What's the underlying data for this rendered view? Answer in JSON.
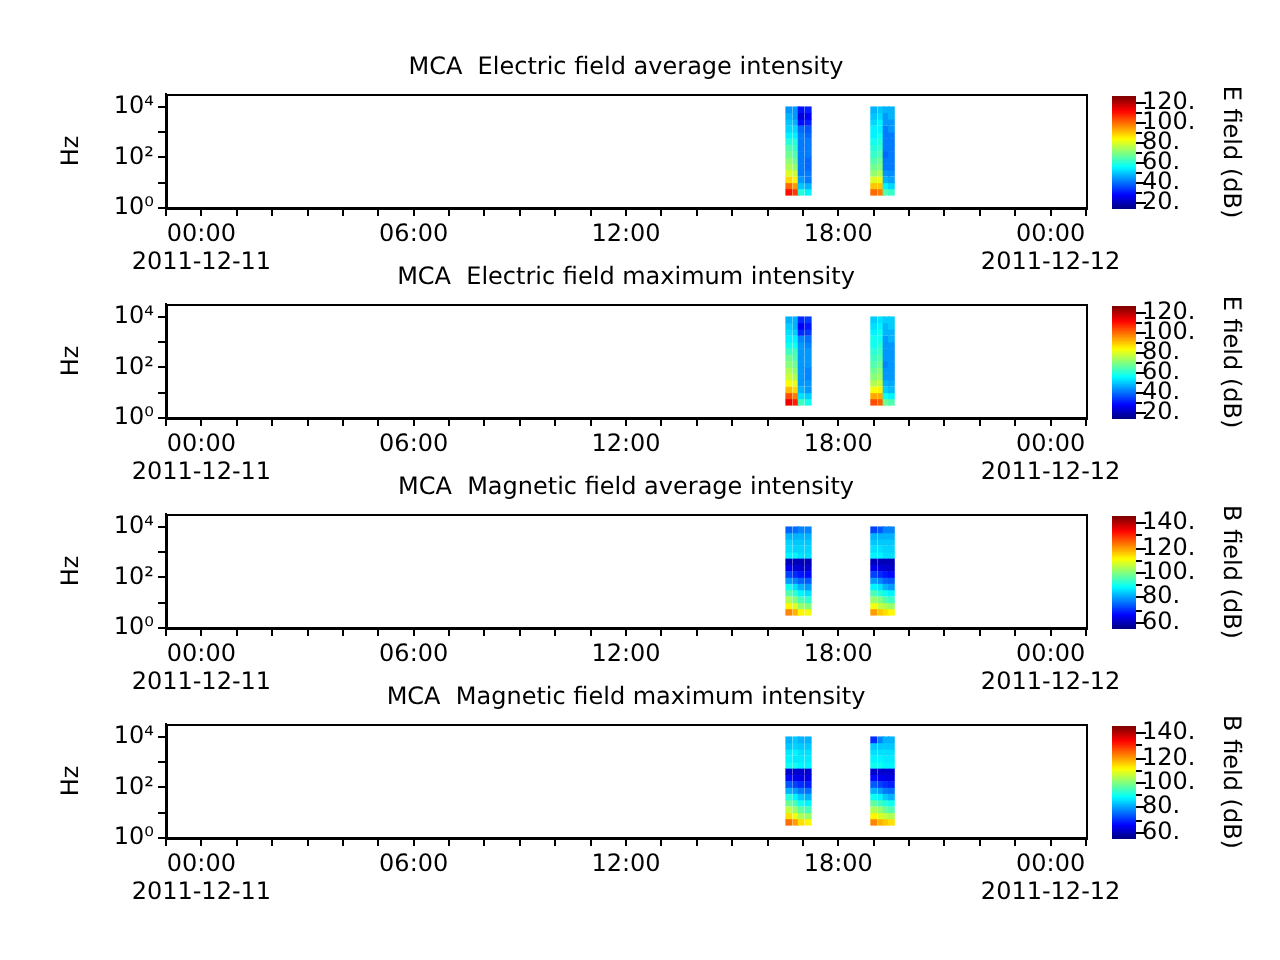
{
  "chart_data": [
    {
      "type": "scatter",
      "title": "MCA  Electric field average intensity",
      "ylabel": "Hz",
      "clabel": "E field (dB)",
      "log": "y",
      "marker": "square",
      "xlim": [
        -1,
        25
      ],
      "xticks": [
        {
          "value": -1,
          "label": null
        },
        {
          "value": 0,
          "label": "00:00\n2011-12-11"
        },
        {
          "value": 1,
          "label": null
        },
        {
          "value": 2,
          "label": null
        },
        {
          "value": 3,
          "label": null
        },
        {
          "value": 4,
          "label": null
        },
        {
          "value": 5,
          "label": null
        },
        {
          "value": 6,
          "label": "06:00"
        },
        {
          "value": 7,
          "label": null
        },
        {
          "value": 8,
          "label": null
        },
        {
          "value": 9,
          "label": null
        },
        {
          "value": 10,
          "label": null
        },
        {
          "value": 11,
          "label": null
        },
        {
          "value": 12,
          "label": "12:00"
        },
        {
          "value": 13,
          "label": null
        },
        {
          "value": 14,
          "label": null
        },
        {
          "value": 15,
          "label": null
        },
        {
          "value": 16,
          "label": null
        },
        {
          "value": 17,
          "label": null
        },
        {
          "value": 18,
          "label": "18:00"
        },
        {
          "value": 19,
          "label": null
        },
        {
          "value": 20,
          "label": null
        },
        {
          "value": 21,
          "label": null
        },
        {
          "value": 22,
          "label": null
        },
        {
          "value": 23,
          "label": null
        },
        {
          "value": 24,
          "label": "00:00\n2011-12-12"
        },
        {
          "value": 25,
          "label": null
        }
      ],
      "ylim": [
        1,
        31623
      ],
      "yticks": [
        {
          "value": 1,
          "label": "10⁰"
        },
        {
          "value": 10,
          "label": null
        },
        {
          "value": 100,
          "label": "10²"
        },
        {
          "value": 1000,
          "label": null
        },
        {
          "value": 10000,
          "label": "10⁴"
        }
      ],
      "clim": [
        15,
        125
      ],
      "cticks": [
        {
          "value": 20,
          "label": "20."
        },
        {
          "value": 30,
          "label": null
        },
        {
          "value": 40,
          "label": "40."
        },
        {
          "value": 50,
          "label": null
        },
        {
          "value": 60,
          "label": "60."
        },
        {
          "value": 70,
          "label": null
        },
        {
          "value": 80,
          "label": "80."
        },
        {
          "value": 90,
          "label": null
        },
        {
          "value": 100,
          "label": "100."
        },
        {
          "value": 110,
          "label": null
        },
        {
          "value": 120,
          "label": "120."
        }
      ],
      "x": [
        16.6,
        16.6,
        16.6,
        16.6,
        16.6,
        16.6,
        16.6,
        16.6,
        16.6,
        16.6,
        16.6,
        16.6,
        16.6,
        16.6,
        16.8,
        16.8,
        16.8,
        16.8,
        16.8,
        16.8,
        16.8,
        16.8,
        16.8,
        16.8,
        16.8,
        16.8,
        16.8,
        16.8,
        16.95,
        16.95,
        16.95,
        16.95,
        16.95,
        16.95,
        16.95,
        16.95,
        16.95,
        16.95,
        16.95,
        16.95,
        16.95,
        16.95,
        17.15,
        17.15,
        17.15,
        17.15,
        17.15,
        17.15,
        17.15,
        17.15,
        17.15,
        17.15,
        17.15,
        17.15,
        17.15,
        17.15,
        19,
        19,
        19,
        19,
        19,
        19,
        19,
        19,
        19,
        19,
        19,
        19,
        19,
        19,
        19.2,
        19.2,
        19.2,
        19.2,
        19.2,
        19.2,
        19.2,
        19.2,
        19.2,
        19.2,
        19.2,
        19.2,
        19.2,
        19.2,
        19.35,
        19.35,
        19.35,
        19.35,
        19.35,
        19.35,
        19.35,
        19.35,
        19.35,
        19.35,
        19.35,
        19.35,
        19.35,
        19.35,
        19.5,
        19.5,
        19.5,
        19.5,
        19.5,
        19.5,
        19.5,
        19.5,
        19.5,
        19.5,
        19.5,
        19.5,
        19.5,
        19.5
      ],
      "values": [
        4.2,
        7.5,
        13,
        24,
        42,
        75,
        130,
        240,
        420,
        750,
        1300,
        2400,
        4200,
        7500,
        4.2,
        7.5,
        13,
        24,
        42,
        75,
        130,
        240,
        420,
        750,
        1300,
        2400,
        4200,
        7500,
        4.2,
        7.5,
        13,
        24,
        42,
        75,
        130,
        240,
        420,
        750,
        1300,
        2400,
        4200,
        7500,
        4.2,
        7.5,
        13,
        24,
        42,
        75,
        130,
        240,
        420,
        750,
        1300,
        2400,
        4200,
        7500,
        4.2,
        7.5,
        13,
        24,
        42,
        75,
        130,
        240,
        420,
        750,
        1300,
        2400,
        4200,
        7500,
        4.2,
        7.5,
        13,
        24,
        42,
        75,
        130,
        240,
        420,
        750,
        1300,
        2400,
        4200,
        7500,
        4.2,
        7.5,
        13,
        24,
        42,
        75,
        130,
        240,
        420,
        750,
        1300,
        2400,
        4200,
        7500,
        4.2,
        7.5,
        13,
        24,
        42,
        75,
        130,
        240,
        420,
        750,
        1300,
        2400,
        4200,
        7500
      ],
      "cvalues": [
        110,
        100,
        88,
        80,
        75,
        72,
        68,
        65,
        60,
        55,
        52,
        50,
        48,
        45,
        105,
        95,
        85,
        78,
        72,
        68,
        65,
        62,
        60,
        55,
        52,
        48,
        45,
        45,
        60,
        50,
        45,
        42,
        42,
        42,
        42,
        42,
        42,
        42,
        40,
        30,
        25,
        30,
        55,
        48,
        42,
        42,
        40,
        40,
        42,
        42,
        42,
        40,
        38,
        32,
        28,
        32,
        100,
        90,
        80,
        72,
        68,
        65,
        62,
        60,
        58,
        55,
        55,
        52,
        50,
        48,
        98,
        90,
        82,
        75,
        70,
        68,
        65,
        62,
        60,
        58,
        55,
        55,
        52,
        50,
        65,
        55,
        48,
        45,
        42,
        42,
        40,
        42,
        42,
        42,
        42,
        45,
        45,
        48,
        62,
        52,
        46,
        44,
        42,
        42,
        42,
        42,
        42,
        42,
        45,
        45,
        48,
        48
      ]
    },
    {
      "type": "scatter",
      "title": "MCA  Electric field maximum intensity",
      "ylabel": "Hz",
      "clabel": "E field (dB)",
      "log": "y",
      "marker": "square",
      "xlim": [
        -1,
        25
      ],
      "xticks": [
        {
          "value": -1,
          "label": null
        },
        {
          "value": 0,
          "label": "00:00\n2011-12-11"
        },
        {
          "value": 1,
          "label": null
        },
        {
          "value": 2,
          "label": null
        },
        {
          "value": 3,
          "label": null
        },
        {
          "value": 4,
          "label": null
        },
        {
          "value": 5,
          "label": null
        },
        {
          "value": 6,
          "label": "06:00"
        },
        {
          "value": 7,
          "label": null
        },
        {
          "value": 8,
          "label": null
        },
        {
          "value": 9,
          "label": null
        },
        {
          "value": 10,
          "label": null
        },
        {
          "value": 11,
          "label": null
        },
        {
          "value": 12,
          "label": "12:00"
        },
        {
          "value": 13,
          "label": null
        },
        {
          "value": 14,
          "label": null
        },
        {
          "value": 15,
          "label": null
        },
        {
          "value": 16,
          "label": null
        },
        {
          "value": 17,
          "label": null
        },
        {
          "value": 18,
          "label": "18:00"
        },
        {
          "value": 19,
          "label": null
        },
        {
          "value": 20,
          "label": null
        },
        {
          "value": 21,
          "label": null
        },
        {
          "value": 22,
          "label": null
        },
        {
          "value": 23,
          "label": null
        },
        {
          "value": 24,
          "label": "00:00\n2011-12-12"
        },
        {
          "value": 25,
          "label": null
        }
      ],
      "ylim": [
        1,
        31623
      ],
      "yticks": [
        {
          "value": 1,
          "label": "10⁰"
        },
        {
          "value": 10,
          "label": null
        },
        {
          "value": 100,
          "label": "10²"
        },
        {
          "value": 1000,
          "label": null
        },
        {
          "value": 10000,
          "label": "10⁴"
        }
      ],
      "clim": [
        15,
        125
      ],
      "cticks": [
        {
          "value": 20,
          "label": "20."
        },
        {
          "value": 30,
          "label": null
        },
        {
          "value": 40,
          "label": "40."
        },
        {
          "value": 50,
          "label": null
        },
        {
          "value": 60,
          "label": "60."
        },
        {
          "value": 70,
          "label": null
        },
        {
          "value": 80,
          "label": "80."
        },
        {
          "value": 90,
          "label": null
        },
        {
          "value": 100,
          "label": "100."
        },
        {
          "value": 110,
          "label": null
        },
        {
          "value": 120,
          "label": "120."
        }
      ],
      "x": [
        16.6,
        16.6,
        16.6,
        16.6,
        16.6,
        16.6,
        16.6,
        16.6,
        16.6,
        16.6,
        16.6,
        16.6,
        16.6,
        16.6,
        16.8,
        16.8,
        16.8,
        16.8,
        16.8,
        16.8,
        16.8,
        16.8,
        16.8,
        16.8,
        16.8,
        16.8,
        16.8,
        16.8,
        16.95,
        16.95,
        16.95,
        16.95,
        16.95,
        16.95,
        16.95,
        16.95,
        16.95,
        16.95,
        16.95,
        16.95,
        16.95,
        16.95,
        17.15,
        17.15,
        17.15,
        17.15,
        17.15,
        17.15,
        17.15,
        17.15,
        17.15,
        17.15,
        17.15,
        17.15,
        17.15,
        17.15,
        19,
        19,
        19,
        19,
        19,
        19,
        19,
        19,
        19,
        19,
        19,
        19,
        19,
        19,
        19.2,
        19.2,
        19.2,
        19.2,
        19.2,
        19.2,
        19.2,
        19.2,
        19.2,
        19.2,
        19.2,
        19.2,
        19.2,
        19.2,
        19.35,
        19.35,
        19.35,
        19.35,
        19.35,
        19.35,
        19.35,
        19.35,
        19.35,
        19.35,
        19.35,
        19.35,
        19.35,
        19.35,
        19.5,
        19.5,
        19.5,
        19.5,
        19.5,
        19.5,
        19.5,
        19.5,
        19.5,
        19.5,
        19.5,
        19.5,
        19.5,
        19.5
      ],
      "values": [
        4.2,
        7.5,
        13,
        24,
        42,
        75,
        130,
        240,
        420,
        750,
        1300,
        2400,
        4200,
        7500,
        4.2,
        7.5,
        13,
        24,
        42,
        75,
        130,
        240,
        420,
        750,
        1300,
        2400,
        4200,
        7500,
        4.2,
        7.5,
        13,
        24,
        42,
        75,
        130,
        240,
        420,
        750,
        1300,
        2400,
        4200,
        7500,
        4.2,
        7.5,
        13,
        24,
        42,
        75,
        130,
        240,
        420,
        750,
        1300,
        2400,
        4200,
        7500,
        4.2,
        7.5,
        13,
        24,
        42,
        75,
        130,
        240,
        420,
        750,
        1300,
        2400,
        4200,
        7500,
        4.2,
        7.5,
        13,
        24,
        42,
        75,
        130,
        240,
        420,
        750,
        1300,
        2400,
        4200,
        7500,
        4.2,
        7.5,
        13,
        24,
        42,
        75,
        130,
        240,
        420,
        750,
        1300,
        2400,
        4200,
        7500,
        4.2,
        7.5,
        13,
        24,
        42,
        75,
        130,
        240,
        420,
        750,
        1300,
        2400,
        4200,
        7500
      ],
      "cvalues": [
        113,
        103,
        91,
        83,
        78,
        75,
        71,
        68,
        63,
        58,
        55,
        53,
        51,
        48,
        108,
        98,
        88,
        81,
        75,
        71,
        68,
        65,
        63,
        58,
        55,
        51,
        48,
        48,
        63,
        53,
        48,
        45,
        45,
        45,
        45,
        45,
        45,
        45,
        43,
        33,
        28,
        33,
        58,
        51,
        45,
        45,
        43,
        43,
        45,
        45,
        45,
        43,
        41,
        35,
        31,
        35,
        103,
        93,
        83,
        75,
        71,
        68,
        65,
        63,
        61,
        58,
        58,
        55,
        53,
        51,
        101,
        93,
        85,
        78,
        73,
        71,
        68,
        65,
        63,
        61,
        58,
        58,
        55,
        53,
        68,
        58,
        51,
        48,
        45,
        45,
        43,
        45,
        45,
        45,
        45,
        48,
        48,
        51,
        65,
        55,
        49,
        47,
        45,
        45,
        45,
        45,
        45,
        45,
        48,
        48,
        51,
        51
      ]
    },
    {
      "type": "scatter",
      "title": "MCA  Magnetic field average intensity",
      "ylabel": "Hz",
      "clabel": "B field (dB)",
      "log": "y",
      "marker": "square",
      "xlim": [
        -1,
        25
      ],
      "xticks": [
        {
          "value": -1,
          "label": null
        },
        {
          "value": 0,
          "label": "00:00\n2011-12-11"
        },
        {
          "value": 1,
          "label": null
        },
        {
          "value": 2,
          "label": null
        },
        {
          "value": 3,
          "label": null
        },
        {
          "value": 4,
          "label": null
        },
        {
          "value": 5,
          "label": null
        },
        {
          "value": 6,
          "label": "06:00"
        },
        {
          "value": 7,
          "label": null
        },
        {
          "value": 8,
          "label": null
        },
        {
          "value": 9,
          "label": null
        },
        {
          "value": 10,
          "label": null
        },
        {
          "value": 11,
          "label": null
        },
        {
          "value": 12,
          "label": "12:00"
        },
        {
          "value": 13,
          "label": null
        },
        {
          "value": 14,
          "label": null
        },
        {
          "value": 15,
          "label": null
        },
        {
          "value": 16,
          "label": null
        },
        {
          "value": 17,
          "label": null
        },
        {
          "value": 18,
          "label": "18:00"
        },
        {
          "value": 19,
          "label": null
        },
        {
          "value": 20,
          "label": null
        },
        {
          "value": 21,
          "label": null
        },
        {
          "value": 22,
          "label": null
        },
        {
          "value": 23,
          "label": null
        },
        {
          "value": 24,
          "label": "00:00\n2011-12-12"
        },
        {
          "value": 25,
          "label": null
        }
      ],
      "ylim": [
        1,
        31623
      ],
      "yticks": [
        {
          "value": 1,
          "label": "10⁰"
        },
        {
          "value": 10,
          "label": null
        },
        {
          "value": 100,
          "label": "10²"
        },
        {
          "value": 1000,
          "label": null
        },
        {
          "value": 10000,
          "label": "10⁴"
        }
      ],
      "clim": [
        55,
        145
      ],
      "cticks": [
        {
          "value": 60,
          "label": "60."
        },
        {
          "value": 70,
          "label": null
        },
        {
          "value": 80,
          "label": "80."
        },
        {
          "value": 90,
          "label": null
        },
        {
          "value": 100,
          "label": "100."
        },
        {
          "value": 110,
          "label": null
        },
        {
          "value": 120,
          "label": "120."
        },
        {
          "value": 130,
          "label": null
        },
        {
          "value": 140,
          "label": "140."
        }
      ],
      "x": [
        16.6,
        16.6,
        16.6,
        16.6,
        16.6,
        16.6,
        16.6,
        16.6,
        16.6,
        16.6,
        16.6,
        16.6,
        16.6,
        16.6,
        16.8,
        16.8,
        16.8,
        16.8,
        16.8,
        16.8,
        16.8,
        16.8,
        16.8,
        16.8,
        16.8,
        16.8,
        16.8,
        16.8,
        16.95,
        16.95,
        16.95,
        16.95,
        16.95,
        16.95,
        16.95,
        16.95,
        16.95,
        16.95,
        16.95,
        16.95,
        16.95,
        16.95,
        17.15,
        17.15,
        17.15,
        17.15,
        17.15,
        17.15,
        17.15,
        17.15,
        17.15,
        17.15,
        17.15,
        17.15,
        17.15,
        17.15,
        19,
        19,
        19,
        19,
        19,
        19,
        19,
        19,
        19,
        19,
        19,
        19,
        19,
        19,
        19.2,
        19.2,
        19.2,
        19.2,
        19.2,
        19.2,
        19.2,
        19.2,
        19.2,
        19.2,
        19.2,
        19.2,
        19.2,
        19.2,
        19.35,
        19.35,
        19.35,
        19.35,
        19.35,
        19.35,
        19.35,
        19.35,
        19.35,
        19.35,
        19.35,
        19.35,
        19.35,
        19.35,
        19.5,
        19.5,
        19.5,
        19.5,
        19.5,
        19.5,
        19.5,
        19.5,
        19.5,
        19.5,
        19.5,
        19.5,
        19.5,
        19.5
      ],
      "values": [
        4.2,
        7.5,
        13,
        24,
        42,
        75,
        130,
        240,
        420,
        750,
        1300,
        2400,
        4200,
        7500,
        4.2,
        7.5,
        13,
        24,
        42,
        75,
        130,
        240,
        420,
        750,
        1300,
        2400,
        4200,
        7500,
        4.2,
        7.5,
        13,
        24,
        42,
        75,
        130,
        240,
        420,
        750,
        1300,
        2400,
        4200,
        7500,
        4.2,
        7.5,
        13,
        24,
        42,
        75,
        130,
        240,
        420,
        750,
        1300,
        2400,
        4200,
        7500,
        4.2,
        7.5,
        13,
        24,
        42,
        75,
        130,
        240,
        420,
        750,
        1300,
        2400,
        4200,
        7500,
        4.2,
        7.5,
        13,
        24,
        42,
        75,
        130,
        240,
        420,
        750,
        1300,
        2400,
        4200,
        7500,
        4.2,
        7.5,
        13,
        24,
        42,
        75,
        130,
        240,
        420,
        750,
        1300,
        2400,
        4200,
        7500,
        4.2,
        7.5,
        13,
        24,
        42,
        75,
        130,
        240,
        420,
        750,
        1300,
        2400,
        4200,
        7500
      ],
      "cvalues": [
        122,
        112,
        104,
        96,
        90,
        80,
        72,
        65,
        60,
        88,
        86,
        85,
        82,
        75,
        118,
        108,
        100,
        93,
        86,
        78,
        70,
        63,
        60,
        88,
        85,
        84,
        82,
        76,
        112,
        102,
        95,
        88,
        82,
        75,
        68,
        62,
        60,
        86,
        85,
        84,
        82,
        78,
        110,
        100,
        93,
        86,
        80,
        74,
        67,
        62,
        60,
        86,
        85,
        84,
        82,
        78,
        120,
        110,
        102,
        95,
        88,
        80,
        72,
        65,
        60,
        88,
        86,
        84,
        82,
        72,
        116,
        106,
        100,
        92,
        86,
        78,
        70,
        63,
        60,
        88,
        86,
        84,
        82,
        74,
        114,
        104,
        96,
        90,
        82,
        75,
        68,
        62,
        60,
        86,
        85,
        84,
        82,
        78,
        112,
        102,
        94,
        88,
        80,
        74,
        67,
        62,
        60,
        86,
        85,
        84,
        82,
        78
      ]
    },
    {
      "type": "scatter",
      "title": "MCA  Magnetic field maximum intensity",
      "ylabel": "Hz",
      "clabel": "B field (dB)",
      "log": "y",
      "marker": "square",
      "xlim": [
        -1,
        25
      ],
      "xticks": [
        {
          "value": -1,
          "label": null
        },
        {
          "value": 0,
          "label": "00:00\n2011-12-11"
        },
        {
          "value": 1,
          "label": null
        },
        {
          "value": 2,
          "label": null
        },
        {
          "value": 3,
          "label": null
        },
        {
          "value": 4,
          "label": null
        },
        {
          "value": 5,
          "label": null
        },
        {
          "value": 6,
          "label": "06:00"
        },
        {
          "value": 7,
          "label": null
        },
        {
          "value": 8,
          "label": null
        },
        {
          "value": 9,
          "label": null
        },
        {
          "value": 10,
          "label": null
        },
        {
          "value": 11,
          "label": null
        },
        {
          "value": 12,
          "label": "12:00"
        },
        {
          "value": 13,
          "label": null
        },
        {
          "value": 14,
          "label": null
        },
        {
          "value": 15,
          "label": null
        },
        {
          "value": 16,
          "label": null
        },
        {
          "value": 17,
          "label": null
        },
        {
          "value": 18,
          "label": "18:00"
        },
        {
          "value": 19,
          "label": null
        },
        {
          "value": 20,
          "label": null
        },
        {
          "value": 21,
          "label": null
        },
        {
          "value": 22,
          "label": null
        },
        {
          "value": 23,
          "label": null
        },
        {
          "value": 24,
          "label": "00:00\n2011-12-12"
        },
        {
          "value": 25,
          "label": null
        }
      ],
      "ylim": [
        1,
        31623
      ],
      "yticks": [
        {
          "value": 1,
          "label": "10⁰"
        },
        {
          "value": 10,
          "label": null
        },
        {
          "value": 100,
          "label": "10²"
        },
        {
          "value": 1000,
          "label": null
        },
        {
          "value": 10000,
          "label": "10⁴"
        }
      ],
      "clim": [
        55,
        145
      ],
      "cticks": [
        {
          "value": 60,
          "label": "60."
        },
        {
          "value": 70,
          "label": null
        },
        {
          "value": 80,
          "label": "80."
        },
        {
          "value": 90,
          "label": null
        },
        {
          "value": 100,
          "label": "100."
        },
        {
          "value": 110,
          "label": null
        },
        {
          "value": 120,
          "label": "120."
        },
        {
          "value": 130,
          "label": null
        },
        {
          "value": 140,
          "label": "140."
        }
      ],
      "x": [
        16.6,
        16.6,
        16.6,
        16.6,
        16.6,
        16.6,
        16.6,
        16.6,
        16.6,
        16.6,
        16.6,
        16.6,
        16.6,
        16.6,
        16.8,
        16.8,
        16.8,
        16.8,
        16.8,
        16.8,
        16.8,
        16.8,
        16.8,
        16.8,
        16.8,
        16.8,
        16.8,
        16.8,
        16.95,
        16.95,
        16.95,
        16.95,
        16.95,
        16.95,
        16.95,
        16.95,
        16.95,
        16.95,
        16.95,
        16.95,
        16.95,
        16.95,
        17.15,
        17.15,
        17.15,
        17.15,
        17.15,
        17.15,
        17.15,
        17.15,
        17.15,
        17.15,
        17.15,
        17.15,
        17.15,
        17.15,
        19,
        19,
        19,
        19,
        19,
        19,
        19,
        19,
        19,
        19,
        19,
        19,
        19,
        19,
        19.2,
        19.2,
        19.2,
        19.2,
        19.2,
        19.2,
        19.2,
        19.2,
        19.2,
        19.2,
        19.2,
        19.2,
        19.2,
        19.2,
        19.35,
        19.35,
        19.35,
        19.35,
        19.35,
        19.35,
        19.35,
        19.35,
        19.35,
        19.35,
        19.35,
        19.35,
        19.35,
        19.35,
        19.5,
        19.5,
        19.5,
        19.5,
        19.5,
        19.5,
        19.5,
        19.5,
        19.5,
        19.5,
        19.5,
        19.5,
        19.5,
        19.5
      ],
      "values": [
        4.2,
        7.5,
        13,
        24,
        42,
        75,
        130,
        240,
        420,
        750,
        1300,
        2400,
        4200,
        7500,
        4.2,
        7.5,
        13,
        24,
        42,
        75,
        130,
        240,
        420,
        750,
        1300,
        2400,
        4200,
        7500,
        4.2,
        7.5,
        13,
        24,
        42,
        75,
        130,
        240,
        420,
        750,
        1300,
        2400,
        4200,
        7500,
        4.2,
        7.5,
        13,
        24,
        42,
        75,
        130,
        240,
        420,
        750,
        1300,
        2400,
        4200,
        7500,
        4.2,
        7.5,
        13,
        24,
        42,
        75,
        130,
        240,
        420,
        750,
        1300,
        2400,
        4200,
        7500,
        4.2,
        7.5,
        13,
        24,
        42,
        75,
        130,
        240,
        420,
        750,
        1300,
        2400,
        4200,
        7500,
        4.2,
        7.5,
        13,
        24,
        42,
        75,
        130,
        240,
        420,
        750,
        1300,
        2400,
        4200,
        7500,
        4.2,
        7.5,
        13,
        24,
        42,
        75,
        130,
        240,
        420,
        750,
        1300,
        2400,
        4200,
        7500
      ],
      "cvalues": [
        124,
        114,
        106,
        98,
        92,
        82,
        74,
        67,
        62,
        90,
        88,
        87,
        84,
        82,
        120,
        110,
        102,
        95,
        88,
        80,
        72,
        65,
        62,
        90,
        87,
        88,
        85,
        84,
        114,
        104,
        97,
        90,
        84,
        77,
        70,
        64,
        62,
        88,
        87,
        86,
        84,
        82,
        112,
        102,
        95,
        88,
        82,
        76,
        69,
        64,
        62,
        88,
        87,
        86,
        84,
        82,
        122,
        112,
        104,
        97,
        90,
        82,
        74,
        67,
        62,
        90,
        88,
        86,
        84,
        70,
        118,
        108,
        102,
        94,
        88,
        80,
        72,
        65,
        62,
        90,
        88,
        86,
        84,
        78,
        116,
        106,
        98,
        92,
        84,
        77,
        70,
        64,
        62,
        88,
        87,
        86,
        84,
        82,
        114,
        104,
        96,
        90,
        82,
        76,
        69,
        64,
        62,
        88,
        87,
        86,
        84,
        82
      ]
    }
  ]
}
